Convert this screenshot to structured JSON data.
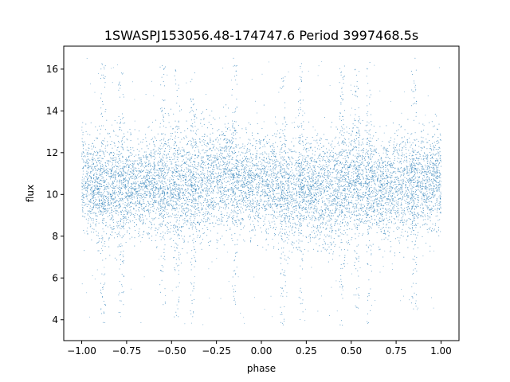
{
  "chart_data": {
    "type": "scatter",
    "title": "1SWASPJ153056.48-174747.6 Period 3997468.5s",
    "xlabel": "phase",
    "ylabel": "flux",
    "xlim": [
      -1.1,
      1.1
    ],
    "ylim": [
      3.0,
      17.1
    ],
    "x_ticks": [
      -1.0,
      -0.75,
      -0.5,
      -0.25,
      0.0,
      0.25,
      0.5,
      0.75,
      1.0
    ],
    "x_tick_labels": [
      "−1.00",
      "−0.75",
      "−0.50",
      "−0.25",
      "0.00",
      "0.25",
      "0.50",
      "0.75",
      "1.00"
    ],
    "y_ticks": [
      4,
      6,
      8,
      10,
      12,
      14,
      16
    ],
    "y_tick_labels": [
      "4",
      "6",
      "8",
      "10",
      "12",
      "14",
      "16"
    ],
    "grid": false,
    "legend": "none",
    "marker_color": "#1f77b4",
    "phase_range": [
      -1.0,
      1.0
    ],
    "flux_median": 10.3,
    "flux_core_range": [
      8.0,
      12.8
    ],
    "flux_extreme_range": [
      3.7,
      16.6
    ],
    "flux_profile": [
      {
        "phase": -1.0,
        "low": 8.6,
        "high": 12.8
      },
      {
        "phase": -0.9,
        "low": 8.3,
        "high": 12.4
      },
      {
        "phase": -0.8,
        "low": 8.1,
        "high": 12.6
      },
      {
        "phase": -0.7,
        "low": 8.4,
        "high": 12.2
      },
      {
        "phase": -0.6,
        "low": 8.7,
        "high": 12.5
      },
      {
        "phase": -0.5,
        "low": 7.9,
        "high": 12.9
      },
      {
        "phase": -0.4,
        "low": 8.2,
        "high": 12.7
      },
      {
        "phase": -0.3,
        "low": 8.3,
        "high": 12.9
      },
      {
        "phase": -0.2,
        "low": 8.6,
        "high": 13.1
      },
      {
        "phase": -0.1,
        "low": 8.8,
        "high": 12.3
      },
      {
        "phase": 0.0,
        "low": 8.6,
        "high": 12.8
      },
      {
        "phase": 0.1,
        "low": 8.1,
        "high": 12.5
      },
      {
        "phase": 0.2,
        "low": 8.0,
        "high": 12.4
      },
      {
        "phase": 0.3,
        "low": 8.2,
        "high": 12.2
      },
      {
        "phase": 0.4,
        "low": 7.8,
        "high": 12.7
      },
      {
        "phase": 0.5,
        "low": 8.5,
        "high": 13.0
      },
      {
        "phase": 0.6,
        "low": 8.3,
        "high": 12.6
      },
      {
        "phase": 0.7,
        "low": 8.1,
        "high": 12.3
      },
      {
        "phase": 0.8,
        "low": 8.2,
        "high": 12.9
      },
      {
        "phase": 0.9,
        "low": 8.5,
        "high": 12.5
      },
      {
        "phase": 1.0,
        "low": 8.6,
        "high": 12.8
      }
    ],
    "outlier_columns": [
      {
        "phase": -0.88,
        "min": 3.7,
        "max": 16.3
      },
      {
        "phase": -0.78,
        "min": 3.9,
        "max": 16.1
      },
      {
        "phase": -0.55,
        "min": 4.3,
        "max": 16.4
      },
      {
        "phase": -0.47,
        "min": 3.7,
        "max": 16.0
      },
      {
        "phase": -0.38,
        "min": 4.1,
        "max": 16.3
      },
      {
        "phase": -0.15,
        "min": 4.6,
        "max": 16.6
      },
      {
        "phase": 0.12,
        "min": 3.7,
        "max": 16.0
      },
      {
        "phase": 0.22,
        "min": 4.0,
        "max": 16.3
      },
      {
        "phase": 0.45,
        "min": 3.7,
        "max": 16.2
      },
      {
        "phase": 0.53,
        "min": 4.5,
        "max": 16.0
      },
      {
        "phase": 0.6,
        "min": 3.8,
        "max": 16.4
      },
      {
        "phase": 0.85,
        "min": 4.2,
        "max": 16.6
      }
    ]
  }
}
